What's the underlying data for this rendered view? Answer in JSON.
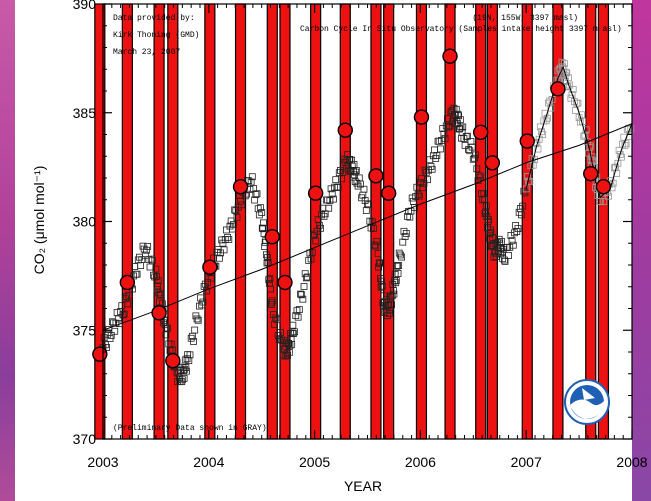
{
  "colors": {
    "bar_fill": "#ee1111",
    "bar_stroke": "#000000",
    "marker_fill": "#ee1111",
    "observed": "#222222",
    "preliminary": "#999999",
    "trend": "#000000",
    "noaa_blue": "#1f5fb5"
  },
  "chart_data": {
    "type": "line",
    "xlabel": "YEAR",
    "ylabel": "CO₂ (μmol mol⁻¹)",
    "xlim": [
      2003,
      2008
    ],
    "ylim": [
      370,
      390
    ],
    "x_ticks": [
      {
        "value": 2003,
        "label": "2003"
      },
      {
        "value": 2004,
        "label": "2004"
      },
      {
        "value": 2005,
        "label": "2005"
      },
      {
        "value": 2006,
        "label": "2006"
      },
      {
        "value": 2007,
        "label": "2007"
      },
      {
        "value": 2008,
        "label": "2008"
      }
    ],
    "y_ticks": [
      {
        "value": 370,
        "label": "370"
      },
      {
        "value": 375,
        "label": "375"
      },
      {
        "value": 380,
        "label": "380"
      },
      {
        "value": 385,
        "label": "385"
      },
      {
        "value": 390,
        "label": "390"
      }
    ],
    "grid": false,
    "annotations": {
      "provider_line1": "Data provided by:",
      "provider_line2": "Kirk Thoning (GMD)",
      "date_line": "March 23, 2007",
      "station": "Carbon Cycle In Situ Observatory (Samples intake height 3397 m asl)",
      "location": "(19N, 155W, 3397 masl)",
      "preliminary_note": "(Preliminary Data shown in GRAY)"
    },
    "trend_line": {
      "x": [
        2003.0,
        2003.5,
        2004.0,
        2004.5,
        2005.0,
        2005.5,
        2006.0,
        2006.5,
        2007.0,
        2007.5,
        2008.0
      ],
      "y": [
        375.0,
        375.9,
        376.9,
        377.8,
        378.8,
        379.8,
        380.8,
        381.7,
        382.7,
        383.5,
        384.5
      ]
    },
    "series": [
      {
        "name": "Observed",
        "x": [
          2003.0,
          2003.1,
          2003.2,
          2003.3,
          2003.4,
          2003.5,
          2003.55,
          2003.6,
          2003.7,
          2003.75,
          2003.8,
          2003.9,
          2004.0,
          2004.1,
          2004.2,
          2004.3,
          2004.4,
          2004.5,
          2004.55,
          2004.6,
          2004.7,
          2004.75,
          2004.8,
          2004.9,
          2005.0,
          2005.1,
          2005.2,
          2005.3,
          2005.35,
          2005.4,
          2005.5,
          2005.6,
          2005.65,
          2005.7,
          2005.75,
          2005.8,
          2005.9,
          2006.0,
          2006.1,
          2006.2,
          2006.3,
          2006.35,
          2006.4,
          2006.5,
          2006.6,
          2006.65,
          2006.7,
          2006.75,
          2006.8,
          2006.9,
          2007.0
        ],
        "y": [
          374.2,
          375.2,
          376.0,
          377.6,
          378.8,
          377.5,
          376.2,
          375.0,
          373.0,
          372.9,
          373.6,
          375.8,
          377.5,
          378.6,
          379.6,
          381.0,
          381.9,
          380.2,
          378.4,
          376.0,
          374.2,
          374.1,
          375.0,
          377.0,
          379.3,
          380.6,
          381.6,
          382.8,
          382.5,
          382.0,
          380.7,
          378.5,
          376.3,
          375.9,
          377.0,
          378.2,
          380.5,
          381.6,
          382.6,
          383.8,
          384.9,
          384.8,
          384.0,
          383.2,
          381.0,
          379.6,
          378.6,
          378.9,
          378.4,
          379.5,
          381.5
        ]
      },
      {
        "name": "Preliminary",
        "x": [
          2007.0,
          2007.1,
          2007.2,
          2007.3,
          2007.35,
          2007.4,
          2007.5,
          2007.6,
          2007.65,
          2007.7,
          2007.8,
          2007.9,
          2008.0
        ],
        "y": [
          381.5,
          383.5,
          385.0,
          386.6,
          387.1,
          386.3,
          385.0,
          383.3,
          382.0,
          381.1,
          381.6,
          383.3,
          384.5
        ]
      }
    ],
    "highlight_points": {
      "x": [
        2002.97,
        2003.23,
        2003.53,
        2003.66,
        2004.01,
        2004.3,
        2004.6,
        2004.72,
        2005.01,
        2005.29,
        2005.58,
        2005.7,
        2006.01,
        2006.28,
        2006.57,
        2006.68,
        2007.01,
        2007.3,
        2007.61,
        2007.73
      ],
      "y": [
        373.9,
        377.2,
        375.8,
        373.6,
        377.9,
        381.6,
        379.3,
        377.2,
        381.3,
        384.2,
        382.1,
        381.3,
        384.8,
        387.6,
        384.1,
        382.7,
        383.7,
        386.1,
        382.2,
        381.6
      ]
    }
  }
}
